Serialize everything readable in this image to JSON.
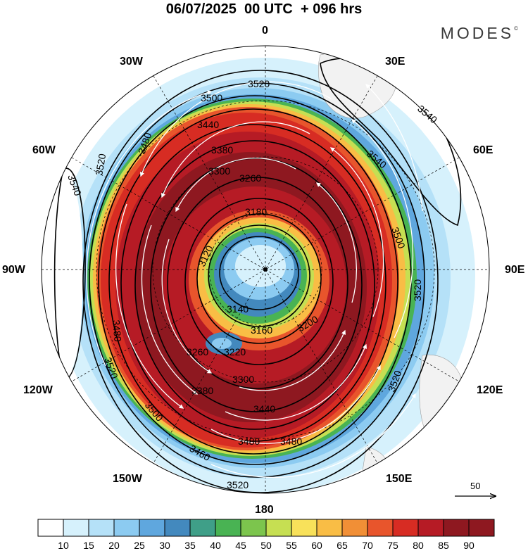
{
  "header": {
    "title": "06/07/2025  00 UTC  + 096 hrs",
    "brand": "MODES",
    "brand_mark": "©"
  },
  "map": {
    "projection": "south-polar-stereographic",
    "lon_labels": {
      "top": "0",
      "top_right": "30E",
      "right_upper": "60E",
      "right": "90E",
      "right_lower": "120E",
      "bottom_right": "150E",
      "bottom": "180",
      "bottom_left": "150W",
      "left_lower": "120W",
      "left": "90W",
      "left_upper": "60W",
      "top_left": "30W"
    },
    "contour_labels": [
      "3520",
      "3500",
      "3540",
      "3540",
      "3540",
      "3520",
      "3480",
      "3440",
      "3380",
      "3300",
      "3260",
      "3180",
      "3120",
      "3140",
      "3160",
      "3200",
      "3220",
      "3260",
      "3300",
      "3380",
      "3440",
      "3480",
      "3480",
      "3500",
      "3520",
      "3520",
      "3500",
      "3460",
      "3520",
      "3520",
      "3480"
    ],
    "vector_reference": {
      "label": "50"
    },
    "colors": {
      "wind_10": "#ffffff",
      "wind_15": "#d6f1fc",
      "wind_20": "#b5e1f8",
      "wind_25": "#8ccbf1",
      "wind_30": "#5fa7de",
      "wind_35": "#4389be",
      "wind_40": "#3f9f88",
      "wind_45": "#49b353",
      "wind_50": "#7cc54d",
      "wind_55": "#c6df52",
      "wind_60": "#f8e15a",
      "wind_65": "#f9bd45",
      "wind_70": "#f18f36",
      "wind_75": "#e8552c",
      "wind_80": "#d72c23",
      "wind_85": "#b61b25",
      "wind_90": "#8e1820",
      "land": "#f2f2f2",
      "contour": "#000000",
      "streamline": "#ffffff"
    }
  },
  "colorbar": {
    "ticks": [
      "10",
      "15",
      "20",
      "25",
      "30",
      "35",
      "40",
      "45",
      "50",
      "55",
      "60",
      "65",
      "70",
      "75",
      "80",
      "85",
      "90"
    ],
    "fills": [
      "#ffffff",
      "#d6f1fc",
      "#b5e1f8",
      "#8ccbf1",
      "#5fa7de",
      "#4389be",
      "#3f9f88",
      "#49b353",
      "#7cc54d",
      "#c6df52",
      "#f8e15a",
      "#f9bd45",
      "#f18f36",
      "#e8552c",
      "#d72c23",
      "#b61b25",
      "#8e1820",
      "#8e1820"
    ]
  }
}
